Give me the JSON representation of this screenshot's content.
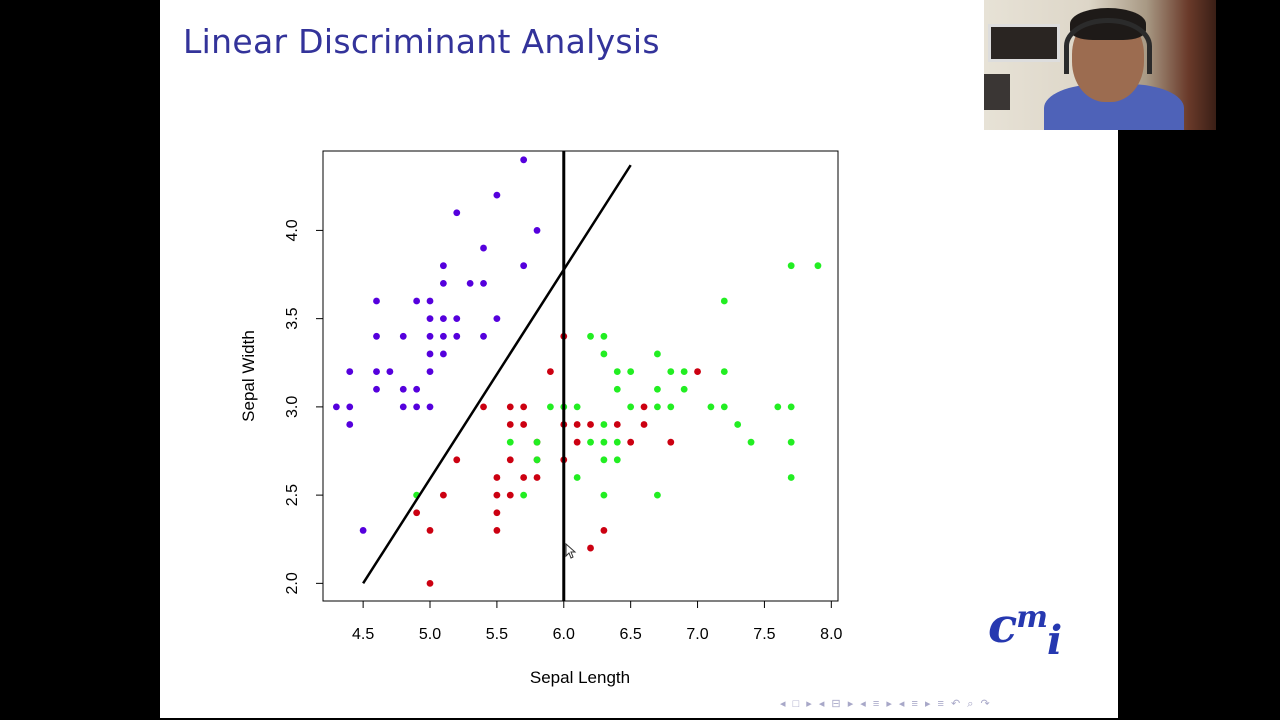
{
  "slide": {
    "title": "Linear Discriminant Analysis"
  },
  "logo": {
    "c": "c",
    "m": "m",
    "i": "i"
  },
  "nav_icons": [
    "left-arrow-icon",
    "frame-icon",
    "right-arrow-icon",
    "left-arrow-icon",
    "subsection-icon",
    "right-arrow-icon",
    "left-arrow-icon",
    "section-icon",
    "right-arrow-icon",
    "left-arrow-icon",
    "section-icon",
    "right-arrow-icon",
    "align-icon",
    "undo-icon",
    "search-icon",
    "redo-icon"
  ],
  "nav_glyphs": "◂ □ ▸  ◂ ⊟ ▸  ◂ ≡ ▸  ◂ ≡ ▸   ≡   ↶ ⌕ ↷",
  "chart_data": {
    "type": "scatter",
    "xlabel": "Sepal Length",
    "ylabel": "Sepal Width",
    "xlim": [
      4.2,
      8.05
    ],
    "ylim": [
      1.9,
      4.45
    ],
    "xticks": [
      4.5,
      5.0,
      5.5,
      6.0,
      6.5,
      7.0,
      7.5,
      8.0
    ],
    "xtick_labels": [
      "4.5",
      "5.0",
      "5.5",
      "6.0",
      "6.5",
      "7.0",
      "7.5",
      "8.0"
    ],
    "yticks": [
      2.0,
      2.5,
      3.0,
      3.5,
      4.0
    ],
    "ytick_labels": [
      "2.0",
      "2.5",
      "3.0",
      "3.5",
      "4.0"
    ],
    "grid": false,
    "series": [
      {
        "color": "#5500dd",
        "points": [
          [
            5.7,
            4.4
          ],
          [
            5.5,
            4.2
          ],
          [
            5.2,
            4.1
          ],
          [
            5.8,
            4.0
          ],
          [
            5.4,
            3.9
          ],
          [
            5.1,
            3.8
          ],
          [
            5.7,
            3.8
          ],
          [
            5.1,
            3.7
          ],
          [
            5.3,
            3.7
          ],
          [
            5.4,
            3.7
          ],
          [
            4.6,
            3.6
          ],
          [
            4.9,
            3.6
          ],
          [
            5.0,
            3.6
          ],
          [
            5.0,
            3.5
          ],
          [
            5.1,
            3.5
          ],
          [
            5.2,
            3.5
          ],
          [
            5.5,
            3.5
          ],
          [
            4.6,
            3.4
          ],
          [
            4.8,
            3.4
          ],
          [
            5.0,
            3.4
          ],
          [
            5.1,
            3.4
          ],
          [
            5.2,
            3.4
          ],
          [
            5.4,
            3.4
          ],
          [
            5.0,
            3.3
          ],
          [
            5.1,
            3.3
          ],
          [
            4.4,
            3.2
          ],
          [
            4.6,
            3.2
          ],
          [
            4.7,
            3.2
          ],
          [
            5.0,
            3.2
          ],
          [
            4.6,
            3.1
          ],
          [
            4.8,
            3.1
          ],
          [
            4.9,
            3.1
          ],
          [
            4.3,
            3.0
          ],
          [
            4.4,
            3.0
          ],
          [
            4.8,
            3.0
          ],
          [
            4.9,
            3.0
          ],
          [
            5.0,
            3.0
          ],
          [
            4.4,
            2.9
          ],
          [
            4.5,
            2.3
          ]
        ]
      },
      {
        "color": "#cc0011",
        "points": [
          [
            6.0,
            3.4
          ],
          [
            5.9,
            3.2
          ],
          [
            7.0,
            3.2
          ],
          [
            5.4,
            3.0
          ],
          [
            5.6,
            3.0
          ],
          [
            5.7,
            3.0
          ],
          [
            6.6,
            3.0
          ],
          [
            5.6,
            2.9
          ],
          [
            5.7,
            2.9
          ],
          [
            6.0,
            2.9
          ],
          [
            6.1,
            2.9
          ],
          [
            6.2,
            2.9
          ],
          [
            6.4,
            2.9
          ],
          [
            6.6,
            2.9
          ],
          [
            5.8,
            2.8
          ],
          [
            6.1,
            2.8
          ],
          [
            6.5,
            2.8
          ],
          [
            6.8,
            2.8
          ],
          [
            5.2,
            2.7
          ],
          [
            5.6,
            2.7
          ],
          [
            5.8,
            2.7
          ],
          [
            6.0,
            2.7
          ],
          [
            5.7,
            2.6
          ],
          [
            5.8,
            2.6
          ],
          [
            5.5,
            2.6
          ],
          [
            5.1,
            2.5
          ],
          [
            5.5,
            2.5
          ],
          [
            5.6,
            2.5
          ],
          [
            4.9,
            2.4
          ],
          [
            5.5,
            2.4
          ],
          [
            5.0,
            2.3
          ],
          [
            5.5,
            2.3
          ],
          [
            6.3,
            2.3
          ],
          [
            6.2,
            2.2
          ],
          [
            5.0,
            2.0
          ]
        ]
      },
      {
        "color": "#22ee22",
        "points": [
          [
            7.7,
            3.8
          ],
          [
            7.9,
            3.8
          ],
          [
            7.2,
            3.6
          ],
          [
            6.2,
            3.4
          ],
          [
            6.3,
            3.4
          ],
          [
            6.3,
            3.3
          ],
          [
            6.7,
            3.3
          ],
          [
            6.4,
            3.2
          ],
          [
            6.5,
            3.2
          ],
          [
            6.8,
            3.2
          ],
          [
            6.9,
            3.2
          ],
          [
            7.2,
            3.2
          ],
          [
            6.4,
            3.1
          ],
          [
            6.7,
            3.1
          ],
          [
            6.9,
            3.1
          ],
          [
            5.9,
            3.0
          ],
          [
            6.0,
            3.0
          ],
          [
            6.1,
            3.0
          ],
          [
            6.5,
            3.0
          ],
          [
            6.7,
            3.0
          ],
          [
            6.8,
            3.0
          ],
          [
            7.1,
            3.0
          ],
          [
            7.2,
            3.0
          ],
          [
            7.6,
            3.0
          ],
          [
            7.7,
            3.0
          ],
          [
            6.3,
            2.9
          ],
          [
            7.3,
            2.9
          ],
          [
            5.6,
            2.8
          ],
          [
            5.8,
            2.8
          ],
          [
            6.2,
            2.8
          ],
          [
            6.3,
            2.8
          ],
          [
            6.4,
            2.8
          ],
          [
            7.4,
            2.8
          ],
          [
            7.7,
            2.8
          ],
          [
            5.8,
            2.7
          ],
          [
            6.3,
            2.7
          ],
          [
            6.4,
            2.7
          ],
          [
            6.1,
            2.6
          ],
          [
            7.7,
            2.6
          ],
          [
            4.9,
            2.5
          ],
          [
            5.7,
            2.5
          ],
          [
            6.3,
            2.5
          ],
          [
            6.7,
            2.5
          ]
        ]
      }
    ],
    "lines": [
      {
        "type": "vertical",
        "x": 6.0
      },
      {
        "type": "segment",
        "from": [
          4.5,
          2.0
        ],
        "to": [
          6.5,
          4.37
        ]
      }
    ]
  }
}
